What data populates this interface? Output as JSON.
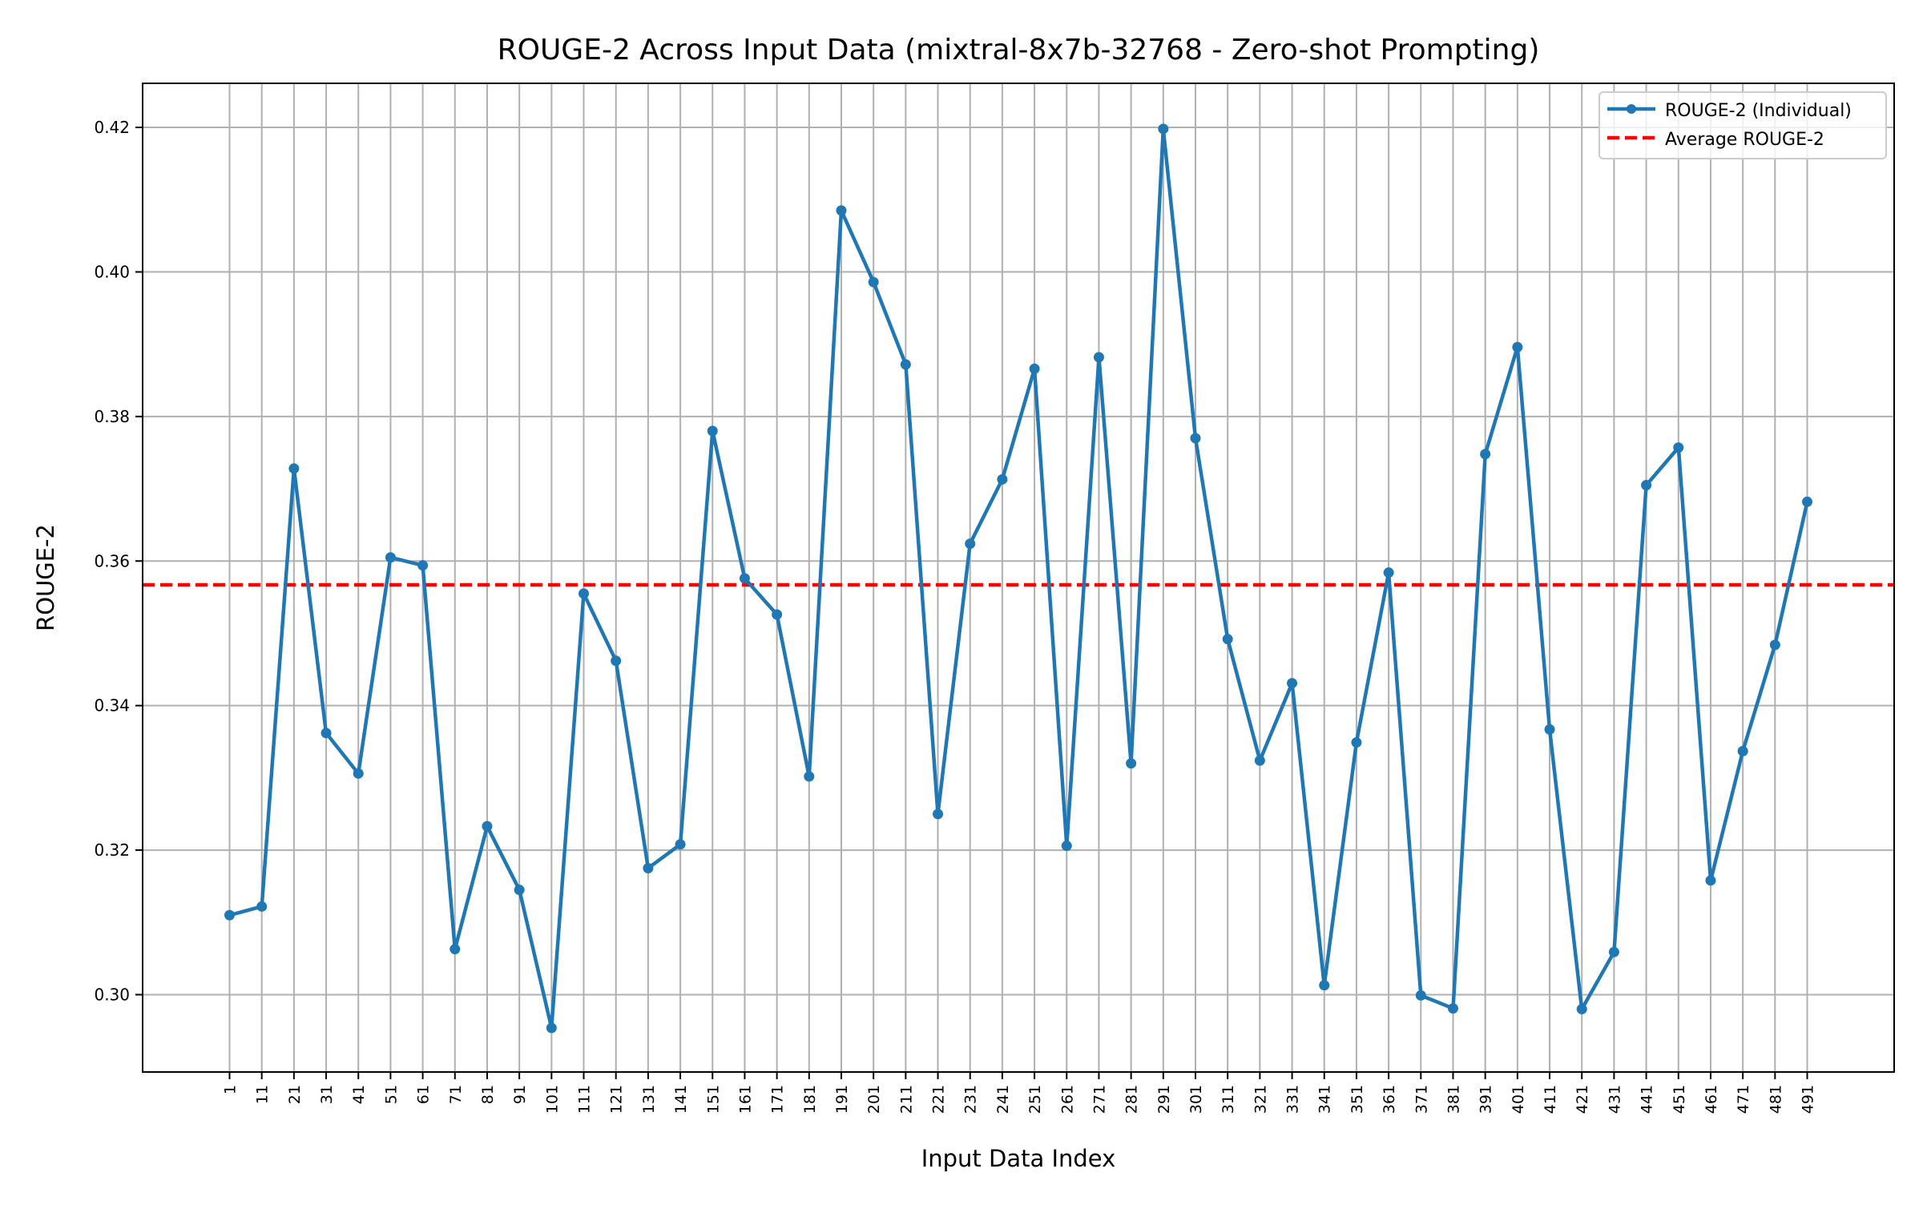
{
  "chart_data": {
    "type": "line",
    "title": "ROUGE-2 Across Input Data (mixtral-8x7b-32768 - Zero-shot Prompting)",
    "xlabel": "Input Data Index",
    "ylabel": "ROUGE-2",
    "x": [
      1,
      11,
      21,
      31,
      41,
      51,
      61,
      71,
      81,
      91,
      101,
      111,
      121,
      131,
      141,
      151,
      161,
      171,
      181,
      191,
      201,
      211,
      221,
      231,
      241,
      251,
      261,
      271,
      281,
      291,
      301,
      311,
      321,
      331,
      341,
      351,
      361,
      371,
      381,
      391,
      401,
      411,
      421,
      431,
      441,
      451,
      461,
      471,
      481,
      491
    ],
    "series": [
      {
        "name": "ROUGE-2 (Individual)",
        "color": "#1f77b4",
        "marker": "circle",
        "values": [
          0.311,
          0.3122,
          0.3728,
          0.3362,
          0.3306,
          0.3605,
          0.3594,
          0.3063,
          0.3233,
          0.3145,
          0.2954,
          0.3555,
          0.3462,
          0.3175,
          0.3208,
          0.378,
          0.3576,
          0.3526,
          0.3302,
          0.4085,
          0.3986,
          0.3872,
          0.325,
          0.3624,
          0.3713,
          0.3866,
          0.3206,
          0.3882,
          0.332,
          0.4198,
          0.377,
          0.3492,
          0.3324,
          0.3431,
          0.3013,
          0.3349,
          0.3584,
          0.2999,
          0.2981,
          0.3748,
          0.3896,
          0.3367,
          0.298,
          0.3059,
          0.3705,
          0.3757,
          0.3158,
          0.3337,
          0.3484,
          0.3682
        ]
      }
    ],
    "average": {
      "name": "Average ROUGE-2",
      "value": 0.3567,
      "color": "#ff0000",
      "style": "dashed"
    },
    "xticks": [
      "1",
      "11",
      "21",
      "31",
      "41",
      "51",
      "61",
      "71",
      "81",
      "91",
      "101",
      "111",
      "121",
      "131",
      "141",
      "151",
      "161",
      "171",
      "181",
      "191",
      "201",
      "211",
      "221",
      "231",
      "241",
      "251",
      "261",
      "271",
      "281",
      "291",
      "301",
      "311",
      "321",
      "331",
      "341",
      "351",
      "361",
      "371",
      "381",
      "391",
      "401",
      "411",
      "421",
      "431",
      "441",
      "451",
      "461",
      "471",
      "481",
      "491"
    ],
    "yticks": [
      0.3,
      0.32,
      0.34,
      0.36,
      0.38,
      0.4,
      0.42
    ],
    "ytick_labels": [
      "0.30",
      "0.32",
      "0.34",
      "0.36",
      "0.38",
      "0.40",
      "0.42"
    ],
    "xlim": [
      -26,
      518
    ],
    "ylim": [
      0.2893,
      0.4261
    ],
    "grid": true,
    "legend": {
      "position": "top-right",
      "entries": [
        "ROUGE-2 (Individual)",
        "Average ROUGE-2"
      ]
    }
  }
}
